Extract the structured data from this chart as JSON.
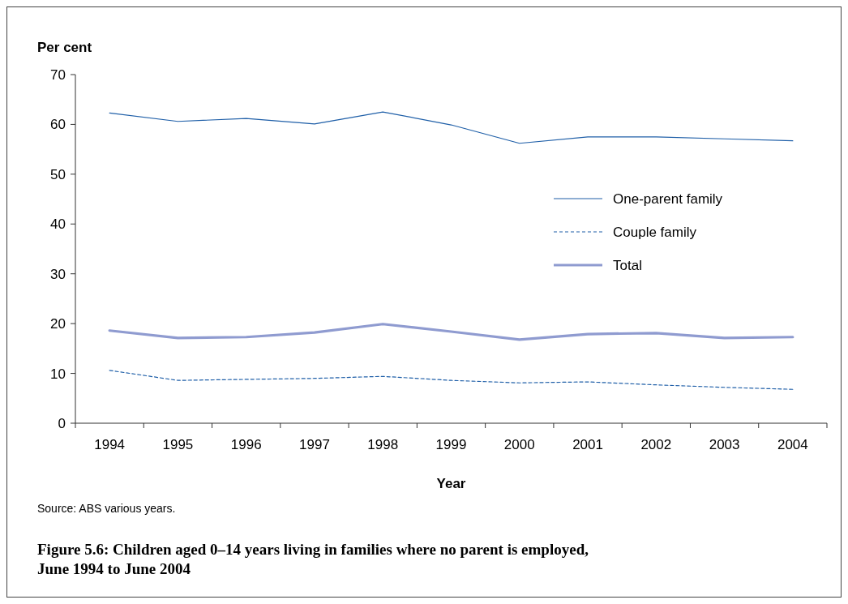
{
  "chart_data": {
    "type": "line",
    "title": "Figure 5.6: Children aged 0–14 years living in families where no parent is employed, June 1994 to June 2004",
    "xlabel": "Year",
    "ylabel": "Per cent",
    "categories": [
      "1994",
      "1995",
      "1996",
      "1997",
      "1998",
      "1999",
      "2000",
      "2001",
      "2002",
      "2003",
      "2004"
    ],
    "series": [
      {
        "name": "One-parent family",
        "color": "#1f5fa8",
        "line_style": "solid",
        "values": [
          62.3,
          60.6,
          61.2,
          60.1,
          62.5,
          59.9,
          56.2,
          57.5,
          57.5,
          57.1,
          56.7
        ]
      },
      {
        "name": "Couple family",
        "color": "#1f5fa8",
        "line_style": "dashed",
        "values": [
          10.6,
          8.6,
          8.8,
          9.0,
          9.4,
          8.6,
          8.1,
          8.3,
          7.7,
          7.2,
          6.8
        ]
      },
      {
        "name": "Total",
        "color": "#8f9bd0",
        "line_style": "solid",
        "values": [
          18.6,
          17.1,
          17.3,
          18.2,
          19.9,
          18.4,
          16.8,
          17.9,
          18.1,
          17.1,
          17.3
        ]
      }
    ],
    "ylim": [
      0,
      70
    ],
    "yticks": [
      0,
      10,
      20,
      30,
      40,
      50,
      60,
      70
    ],
    "grid": false,
    "legend": "right",
    "marker": "none",
    "annotations": [
      "Source: ABS various years."
    ]
  }
}
